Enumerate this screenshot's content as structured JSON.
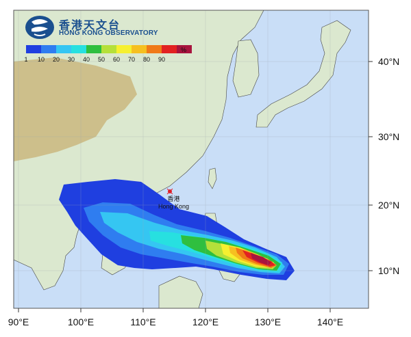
{
  "title": {
    "name_zh": "香港天文台",
    "name_en": "HONG KONG OBSERVATORY"
  },
  "legend": {
    "unit": "%",
    "ticks": [
      "1",
      "10",
      "20",
      "30",
      "40",
      "50",
      "60",
      "70",
      "80",
      "90"
    ],
    "colors": [
      "#1f3fe0",
      "#2f7df0",
      "#35c6f2",
      "#27e0e0",
      "#2fbf3f",
      "#b5e03a",
      "#f6f030",
      "#f6c020",
      "#f07a18",
      "#e22222",
      "#a8143e"
    ]
  },
  "axes": {
    "longitude_labels": [
      "90°E",
      "100°E",
      "110°E",
      "120°E",
      "130°E",
      "140°E"
    ],
    "latitude_labels": [
      "40°N",
      "30°N",
      "20°N",
      "10°N"
    ]
  },
  "place": {
    "name_zh": "香港",
    "name_en": "Hong Kong",
    "marker_color": "#e0202a"
  },
  "map_colors": {
    "ocean": "#c9def7",
    "land": "#dbe8cf",
    "highland": "#cdbf8b"
  }
}
